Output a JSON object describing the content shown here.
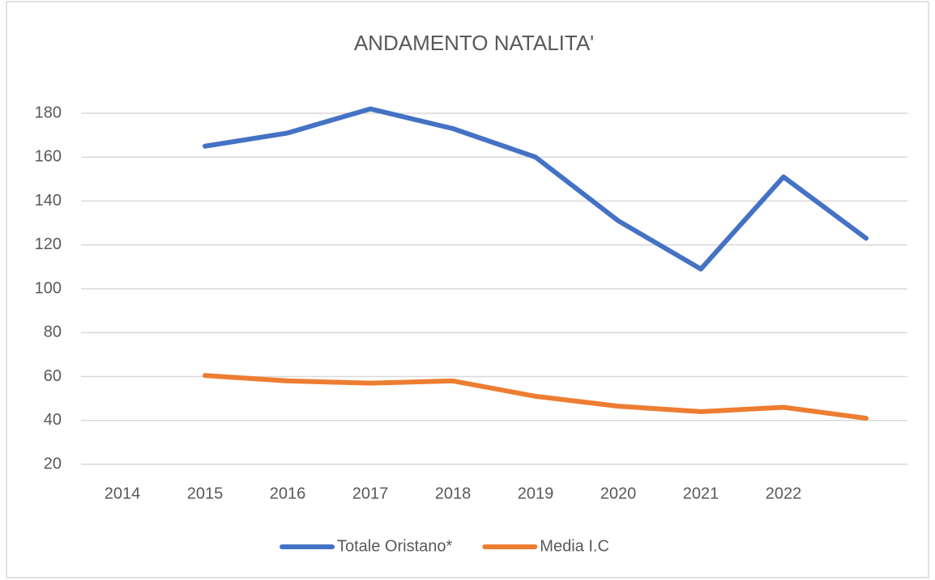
{
  "chart_data": {
    "type": "line",
    "title": "ANDAMENTO NATALITA'",
    "categories": [
      "2014",
      "2015",
      "2016",
      "2017",
      "2018",
      "2019",
      "2020",
      "2021",
      "2022",
      null
    ],
    "series": [
      {
        "name": "Totale Oristano*",
        "color": "#4472c4",
        "values": [
          null,
          165,
          171,
          182,
          173,
          160,
          131,
          109,
          151,
          123
        ]
      },
      {
        "name": "Media I.C",
        "color": "#ed7d31",
        "values": [
          null,
          60.5,
          58,
          57,
          58,
          51,
          46.5,
          44,
          46,
          41
        ]
      }
    ],
    "ylim": [
      20,
      180
    ],
    "yticks": [
      20,
      40,
      60,
      80,
      100,
      120,
      140,
      160,
      180
    ],
    "grid": true,
    "legend": "bottom"
  }
}
